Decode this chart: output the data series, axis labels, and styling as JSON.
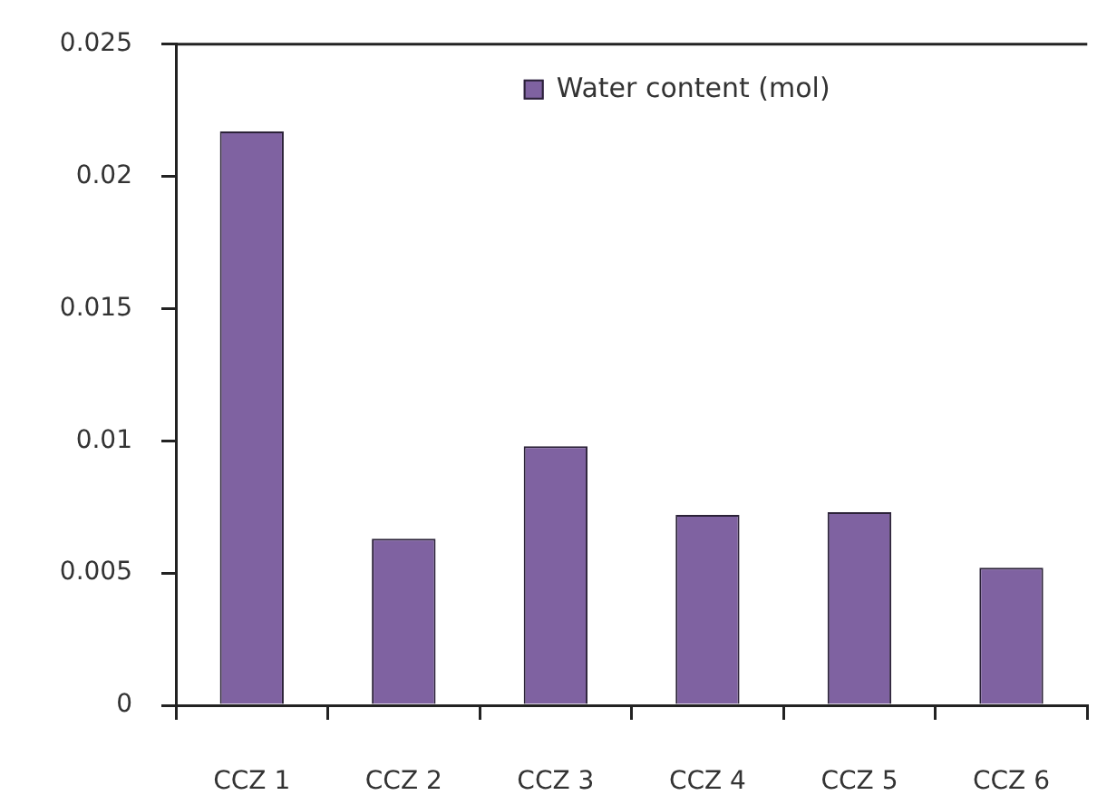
{
  "chart_data": {
    "type": "bar",
    "categories": [
      "CCZ 1",
      "CCZ 2",
      "CCZ 3",
      "CCZ 4",
      "CCZ 5",
      "CCZ 6"
    ],
    "series": [
      {
        "name": "Water content (mol)",
        "color": "#7f62a1",
        "values": [
          0.0217,
          0.0063,
          0.0098,
          0.0072,
          0.0073,
          0.0052
        ]
      }
    ],
    "ylim": [
      0,
      0.025
    ],
    "yticks": [
      0,
      0.005,
      0.01,
      0.015,
      0.02,
      0.025
    ],
    "legend": "top"
  }
}
